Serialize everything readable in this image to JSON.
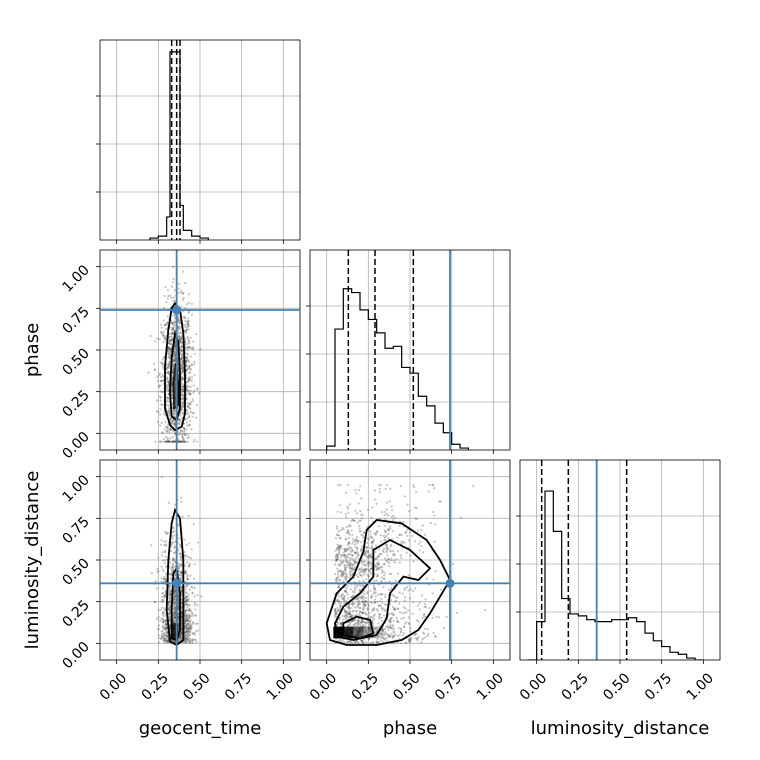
{
  "chart_data": {
    "type": "corner",
    "parameters": [
      "geocent_time",
      "phase",
      "luminosity_distance"
    ],
    "axis_ticks": [
      0.0,
      0.25,
      0.5,
      0.75,
      1.0
    ],
    "tick_labels": [
      "0.00",
      "0.25",
      "0.50",
      "0.75",
      "1.00"
    ],
    "xlim": [
      -0.1,
      1.1
    ],
    "ylim": [
      -0.1,
      1.1
    ],
    "grid": true,
    "colors": {
      "truth": "#4682b4",
      "hist": "#000000",
      "grid": "#b0b0b0"
    },
    "truths": {
      "geocent_time": 0.36,
      "phase": 0.74,
      "luminosity_distance": 0.36
    },
    "quantiles": {
      "geocent_time": [
        0.33,
        0.36,
        0.38
      ],
      "phase": [
        0.13,
        0.29,
        0.52
      ],
      "luminosity_distance": [
        0.03,
        0.19,
        0.54
      ]
    },
    "histograms": {
      "geocent_time": {
        "edges": [
          0.2,
          0.25,
          0.3,
          0.32,
          0.34,
          0.36,
          0.38,
          0.4,
          0.45,
          0.5,
          0.55
        ],
        "counts": [
          0.01,
          0.02,
          0.12,
          0.98,
          0.98,
          0.98,
          0.18,
          0.05,
          0.02,
          0.01
        ]
      },
      "phase": {
        "edges": [
          0.0,
          0.05,
          0.1,
          0.15,
          0.2,
          0.25,
          0.3,
          0.35,
          0.4,
          0.45,
          0.5,
          0.55,
          0.6,
          0.65,
          0.7,
          0.75,
          0.8,
          0.85
        ],
        "counts": [
          0.02,
          0.63,
          0.84,
          0.82,
          0.73,
          0.68,
          0.61,
          0.53,
          0.54,
          0.43,
          0.4,
          0.28,
          0.23,
          0.14,
          0.09,
          0.03,
          0.01
        ]
      },
      "luminosity_distance": {
        "edges": [
          -0.05,
          0.0,
          0.05,
          0.1,
          0.15,
          0.2,
          0.25,
          0.3,
          0.35,
          0.4,
          0.45,
          0.5,
          0.55,
          0.6,
          0.65,
          0.7,
          0.75,
          0.8,
          0.85,
          0.9,
          0.95,
          1.0
        ],
        "counts": [
          0.0,
          0.2,
          0.88,
          0.67,
          0.32,
          0.24,
          0.23,
          0.21,
          0.2,
          0.2,
          0.21,
          0.21,
          0.22,
          0.2,
          0.14,
          0.1,
          0.07,
          0.04,
          0.03,
          0.01,
          0.0
        ]
      }
    }
  }
}
